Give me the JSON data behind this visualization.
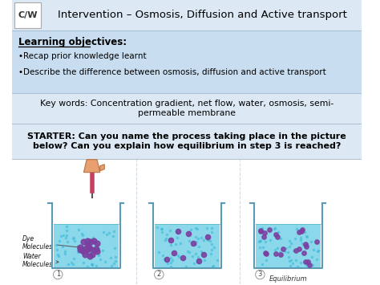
{
  "title": "Intervention – Osmosis, Diffusion and Active transport",
  "cw_label": "C/W",
  "header_bg": "#dce9f5",
  "header_text_color": "#000000",
  "section1_bg": "#c8ddf0",
  "section2_bg": "#dce9f5",
  "section3_bg": "#dce9f5",
  "lo_title": "Learning objectives:",
  "lo_bullets": [
    "Recap prior knowledge learnt",
    "Describe the difference between osmosis, diffusion and active transport"
  ],
  "keywords_text": "Key words: Concentration gradient, net flow, water, osmosis, semi-\npermeable membrane",
  "starter_text": "STARTER: Can you name the process taking place in the picture\nbelow? Can you explain how equilibrium in step 3 is reached?",
  "beaker_labels": [
    "1",
    "2",
    "3"
  ],
  "equilibrium_label": "Equilibrium",
  "dye_label": "Dye\nMolecules",
  "water_label": "Water\nMolecules",
  "beaker_water_color": "#7dd4e8",
  "beaker_outline_color": "#5a9ab5",
  "dye_color_dark": "#7b3fa0",
  "background_color": "#ffffff",
  "divider_color": "#a0b8cc"
}
